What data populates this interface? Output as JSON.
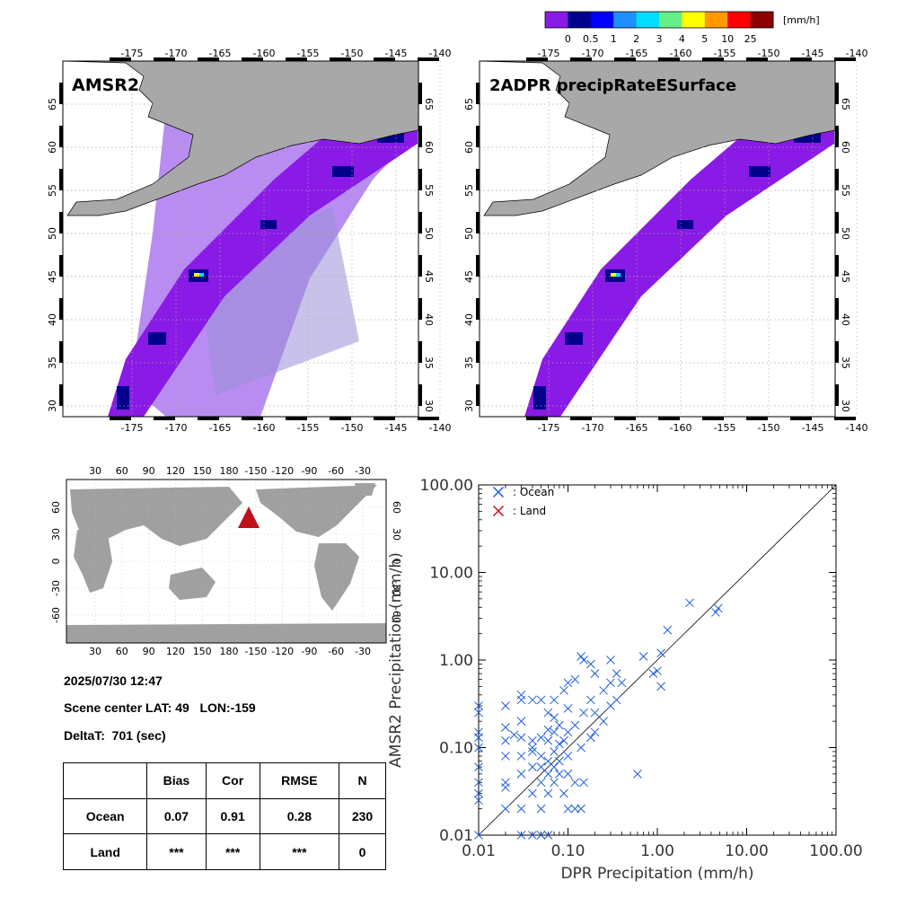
{
  "colorbar": {
    "unit": "[mm/h]",
    "labels": [
      "0",
      "0.5",
      "1",
      "2",
      "3",
      "4",
      "5",
      "10",
      "25"
    ],
    "colors": [
      "#8a1ae6",
      "#00008b",
      "#0000ff",
      "#1e90ff",
      "#00ddff",
      "#66ee88",
      "#ffff00",
      "#ff9900",
      "#ff0000",
      "#8b0000"
    ]
  },
  "maps": {
    "lon_ticks": [
      "-175",
      "-170",
      "-165",
      "-160",
      "-155",
      "-150",
      "-145",
      "-140"
    ],
    "lat_ticks": [
      "30",
      "35",
      "40",
      "45",
      "50",
      "55",
      "60",
      "65"
    ],
    "amsr2_title": "AMSR2",
    "dpr_title": "2ADPR precipRateESurface"
  },
  "globe": {
    "lon_ticks": [
      "30",
      "60",
      "90",
      "120",
      "150",
      "180",
      "-150",
      "-120",
      "-90",
      "-60",
      "-30"
    ],
    "lat_ticks": [
      "60",
      "30",
      "0",
      "-30",
      "-60"
    ]
  },
  "info": {
    "datetime": "2025/07/30 12:47",
    "scene_center": "Scene center LAT: 49   LON:-159",
    "deltat": "DeltaT:  701 (sec)"
  },
  "stats": {
    "headers": [
      "",
      "Bias",
      "Cor",
      "RMSE",
      "N"
    ],
    "rows": [
      [
        "Ocean",
        "0.07",
        "0.91",
        "0.28",
        "230"
      ],
      [
        "Land",
        "***",
        "***",
        "***",
        "0"
      ]
    ]
  },
  "chart_data": {
    "type": "scatter",
    "xlabel": "DPR Precipitation (mm/h)",
    "ylabel": "AMSR2 Precipitation (mm/h)",
    "xscale": "log",
    "yscale": "log",
    "xlim": [
      0.01,
      100
    ],
    "ylim": [
      0.01,
      100
    ],
    "xticks": [
      "0.01",
      "0.10",
      "1.00",
      "10.00",
      "100.00"
    ],
    "yticks": [
      "0.01",
      "0.10",
      "1.00",
      "10.00",
      "100.00"
    ],
    "legend_position": "top-left",
    "series": [
      {
        "name": ": Ocean",
        "color": "#1f5fd6",
        "x": [
          0.01,
          0.01,
          0.01,
          0.01,
          0.01,
          0.01,
          0.01,
          0.01,
          0.01,
          0.01,
          0.02,
          0.02,
          0.02,
          0.02,
          0.02,
          0.02,
          0.02,
          0.025,
          0.03,
          0.03,
          0.03,
          0.03,
          0.03,
          0.03,
          0.03,
          0.03,
          0.04,
          0.04,
          0.04,
          0.04,
          0.04,
          0.04,
          0.04,
          0.05,
          0.05,
          0.05,
          0.05,
          0.05,
          0.05,
          0.05,
          0.06,
          0.06,
          0.06,
          0.06,
          0.06,
          0.06,
          0.06,
          0.07,
          0.07,
          0.07,
          0.07,
          0.07,
          0.07,
          0.08,
          0.08,
          0.08,
          0.08,
          0.09,
          0.09,
          0.09,
          0.1,
          0.1,
          0.1,
          0.1,
          0.1,
          0.1,
          0.12,
          0.12,
          0.12,
          0.12,
          0.14,
          0.14,
          0.14,
          0.15,
          0.15,
          0.15,
          0.18,
          0.18,
          0.18,
          0.2,
          0.2,
          0.2,
          0.25,
          0.25,
          0.3,
          0.3,
          0.3,
          0.35,
          0.35,
          0.4,
          0.6,
          0.7,
          0.9,
          1.0,
          1.1,
          1.1,
          1.3,
          2.3,
          4.5,
          4.8
        ],
        "y": [
          0.01,
          0.025,
          0.03,
          0.04,
          0.06,
          0.1,
          0.13,
          0.15,
          0.3,
          0.25,
          0.02,
          0.04,
          0.08,
          0.12,
          0.17,
          0.3,
          0.035,
          0.14,
          0.01,
          0.02,
          0.05,
          0.08,
          0.13,
          0.2,
          0.35,
          0.4,
          0.01,
          0.03,
          0.06,
          0.09,
          0.1,
          0.12,
          0.35,
          0.01,
          0.02,
          0.04,
          0.06,
          0.08,
          0.13,
          0.35,
          0.01,
          0.03,
          0.05,
          0.07,
          0.12,
          0.16,
          0.25,
          0.04,
          0.06,
          0.09,
          0.15,
          0.22,
          0.35,
          0.05,
          0.07,
          0.11,
          0.18,
          0.03,
          0.12,
          0.45,
          0.02,
          0.05,
          0.08,
          0.15,
          0.28,
          0.55,
          0.02,
          0.04,
          0.18,
          0.6,
          0.02,
          0.1,
          1.1,
          0.04,
          0.25,
          1.0,
          0.13,
          0.35,
          0.9,
          0.15,
          0.25,
          0.7,
          0.2,
          0.45,
          0.3,
          0.55,
          1.0,
          0.35,
          0.7,
          0.55,
          0.05,
          1.1,
          0.7,
          0.75,
          0.5,
          1.2,
          2.2,
          4.5,
          3.5,
          3.9
        ]
      },
      {
        "name": ": Land",
        "color": "#c0101a",
        "x": [],
        "y": []
      }
    ]
  }
}
